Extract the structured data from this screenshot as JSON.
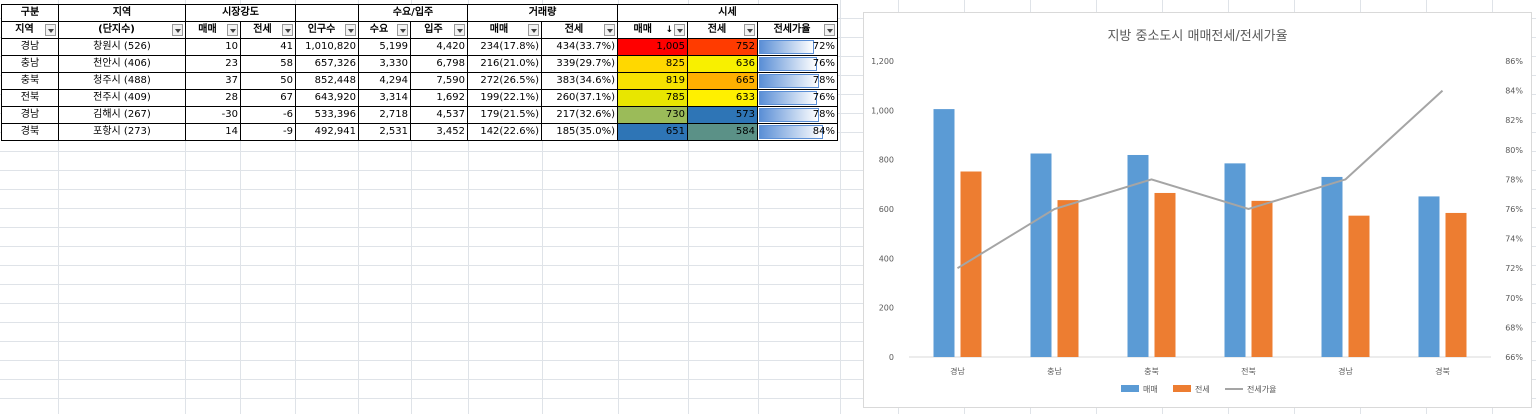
{
  "table": {
    "group_headers": {
      "category": "구분",
      "region": "지역",
      "market_strength": "시장강도",
      "supply": "수요/입주",
      "volume": "거래량",
      "price": "시세"
    },
    "sub_headers": {
      "region_code": "지역",
      "complex_count": "(단지수)",
      "strength_sale": "매매",
      "strength_jeonse": "전세",
      "population": "인구수",
      "demand": "수요",
      "move_in": "입주",
      "volume_sale": "매매",
      "volume_jeonse": "전세",
      "price_sale": "매매",
      "price_jeonse": "전세",
      "jeonse_ratio": "전세가율"
    },
    "rows": [
      {
        "province": "경남",
        "city": "창원시 (526)",
        "str_sale": "10",
        "str_jeonse": "41",
        "population": "1,010,820",
        "demand": "5,199",
        "move_in": "4,420",
        "vol_sale": "234(17.8%)",
        "vol_jeonse": "434(33.7%)",
        "price_sale": "1,005",
        "price_jeonse": "752",
        "ratio": "72%",
        "ratio_value": 0.72,
        "sale_color": "#ff0000",
        "jeonse_color": "#ff3b00"
      },
      {
        "province": "충남",
        "city": "천안시 (406)",
        "str_sale": "23",
        "str_jeonse": "58",
        "population": "657,326",
        "demand": "3,330",
        "move_in": "6,798",
        "vol_sale": "216(21.0%)",
        "vol_jeonse": "339(29.7%)",
        "price_sale": "825",
        "price_jeonse": "636",
        "ratio": "76%",
        "ratio_value": 0.76,
        "sale_color": "#ffd800",
        "jeonse_color": "#f8f000"
      },
      {
        "province": "충북",
        "city": "청주시 (488)",
        "str_sale": "37",
        "str_jeonse": "50",
        "population": "852,448",
        "demand": "4,294",
        "move_in": "7,590",
        "vol_sale": "272(26.5%)",
        "vol_jeonse": "383(34.6%)",
        "price_sale": "819",
        "price_jeonse": "665",
        "ratio": "78%",
        "ratio_value": 0.78,
        "sale_color": "#f7e200",
        "jeonse_color": "#ffb000"
      },
      {
        "province": "전북",
        "city": "전주시 (409)",
        "str_sale": "28",
        "str_jeonse": "67",
        "population": "643,920",
        "demand": "3,314",
        "move_in": "1,692",
        "vol_sale": "199(22.1%)",
        "vol_jeonse": "260(37.1%)",
        "price_sale": "785",
        "price_jeonse": "633",
        "ratio": "76%",
        "ratio_value": 0.76,
        "sale_color": "#e8e600",
        "jeonse_color": "#fff000"
      },
      {
        "province": "경남",
        "city": "김해시 (267)",
        "str_sale": "-30",
        "str_jeonse": "-6",
        "population": "533,396",
        "demand": "2,718",
        "move_in": "4,537",
        "vol_sale": "179(21.5%)",
        "vol_jeonse": "217(32.6%)",
        "price_sale": "730",
        "price_jeonse": "573",
        "ratio": "78%",
        "ratio_value": 0.78,
        "sale_color": "#9bbb59",
        "jeonse_color": "#2e75b6"
      },
      {
        "province": "경북",
        "city": "포항시 (273)",
        "str_sale": "14",
        "str_jeonse": "-9",
        "population": "492,941",
        "demand": "2,531",
        "move_in": "3,452",
        "vol_sale": "142(22.6%)",
        "vol_jeonse": "185(35.0%)",
        "price_sale": "651",
        "price_jeonse": "584",
        "ratio": "84%",
        "ratio_value": 0.84,
        "sale_color": "#2e75b6",
        "jeonse_color": "#5b9187"
      }
    ]
  },
  "chart_data": {
    "type": "bar",
    "title": "지방 중소도시 매매전세/전세가율",
    "categories": [
      "경남",
      "충남",
      "충북",
      "전북",
      "경남",
      "경북"
    ],
    "series": [
      {
        "name": "매매",
        "type": "bar",
        "values": [
          1005,
          825,
          819,
          785,
          730,
          651
        ],
        "color": "#5b9bd5"
      },
      {
        "name": "전세",
        "type": "bar",
        "values": [
          752,
          636,
          665,
          633,
          573,
          584
        ],
        "color": "#ed7d31"
      },
      {
        "name": "전세가율",
        "type": "line",
        "axis": "secondary",
        "values": [
          72,
          76,
          78,
          76,
          78,
          84
        ],
        "color": "#a5a5a5"
      }
    ],
    "y_primary": {
      "min": 0,
      "max": 1200,
      "step": 200,
      "ticks": [
        "0",
        "200",
        "400",
        "600",
        "800",
        "1,000",
        "1,200"
      ]
    },
    "y_secondary": {
      "min": 66,
      "max": 86,
      "step": 2,
      "ticks": [
        "66%",
        "68%",
        "70%",
        "72%",
        "74%",
        "76%",
        "78%",
        "80%",
        "82%",
        "84%",
        "86%"
      ]
    },
    "legend_position": "bottom",
    "grid": false
  }
}
